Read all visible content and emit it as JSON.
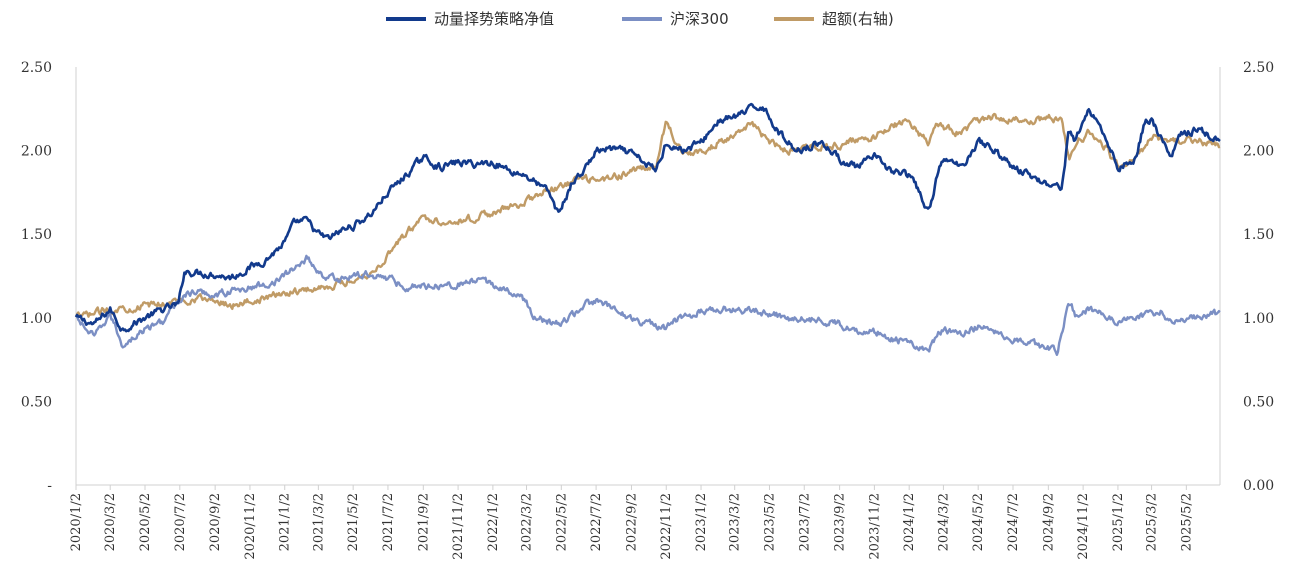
{
  "chart_data": {
    "type": "line",
    "legend": {
      "placement": "top-center",
      "entries": [
        {
          "name": "动量择势策略净值",
          "color": "#123a8c"
        },
        {
          "name": "沪深300",
          "color": "#7b8fc4"
        },
        {
          "name": "超额(右轴)",
          "color": "#c09b66"
        }
      ]
    },
    "y_left": {
      "ticks": [
        "-",
        "0.50",
        "1.00",
        "1.50",
        "2.00",
        "2.50"
      ],
      "tick_values": [
        0,
        0.5,
        1.0,
        1.5,
        2.0,
        2.5
      ],
      "range": [
        0,
        2.5
      ]
    },
    "y_right": {
      "ticks": [
        "0.00",
        "0.50",
        "1.00",
        "1.50",
        "2.00",
        "2.50"
      ],
      "tick_values": [
        0,
        0.5,
        1.0,
        1.5,
        2.0,
        2.5
      ],
      "range": [
        0,
        2.5
      ]
    },
    "x": {
      "start": "2020/1/2",
      "end": "2025/6/30",
      "ticks": [
        "2020/1/2",
        "2020/3/2",
        "2020/5/2",
        "2020/7/2",
        "2020/9/2",
        "2020/11/2",
        "2021/1/2",
        "2021/3/2",
        "2021/5/2",
        "2021/7/2",
        "2021/9/2",
        "2021/11/2",
        "2022/1/2",
        "2022/3/2",
        "2022/5/2",
        "2022/7/2",
        "2022/9/2",
        "2022/11/2",
        "2023/1/2",
        "2023/3/2",
        "2023/5/2",
        "2023/7/2",
        "2023/9/2",
        "2023/11/2",
        "2024/1/2",
        "2024/3/2",
        "2024/5/2",
        "2024/7/2",
        "2024/9/2",
        "2024/11/2",
        "2025/1/2",
        "2025/3/2",
        "2025/5/2"
      ]
    },
    "series": [
      {
        "name": "动量择势策略净值",
        "color": "#123a8c",
        "axis": "left",
        "points": [
          [
            "2020/1/2",
            1.0
          ],
          [
            "2020/2/3",
            0.96
          ],
          [
            "2020/3/2",
            1.05
          ],
          [
            "2020/3/23",
            0.93
          ],
          [
            "2020/5/2",
            1.0
          ],
          [
            "2020/6/2",
            1.05
          ],
          [
            "2020/6/30",
            1.08
          ],
          [
            "2020/7/10",
            1.28
          ],
          [
            "2020/8/2",
            1.27
          ],
          [
            "2020/9/2",
            1.26
          ],
          [
            "2020/9/30",
            1.24
          ],
          [
            "2020/11/2",
            1.3
          ],
          [
            "2020/12/1",
            1.35
          ],
          [
            "2021/1/2",
            1.45
          ],
          [
            "2021/1/20",
            1.57
          ],
          [
            "2021/2/10",
            1.58
          ],
          [
            "2021/3/2",
            1.5
          ],
          [
            "2021/3/20",
            1.47
          ],
          [
            "2021/4/10",
            1.52
          ],
          [
            "2021/5/2",
            1.55
          ],
          [
            "2021/6/2",
            1.62
          ],
          [
            "2021/7/2",
            1.75
          ],
          [
            "2021/8/2",
            1.85
          ],
          [
            "2021/9/2",
            1.96
          ],
          [
            "2021/10/2",
            1.9
          ],
          [
            "2021/11/2",
            1.93
          ],
          [
            "2021/12/2",
            1.92
          ],
          [
            "2022/1/2",
            1.93
          ],
          [
            "2022/2/2",
            1.88
          ],
          [
            "2022/3/2",
            1.85
          ],
          [
            "2022/4/10",
            1.75
          ],
          [
            "2022/4/27",
            1.62
          ],
          [
            "2022/5/20",
            1.8
          ],
          [
            "2022/6/15",
            1.9
          ],
          [
            "2022/7/2",
            2.0
          ],
          [
            "2022/8/2",
            2.01
          ],
          [
            "2022/9/2",
            1.98
          ],
          [
            "2022/10/15",
            1.88
          ],
          [
            "2022/11/2",
            2.05
          ],
          [
            "2022/12/2",
            2.0
          ],
          [
            "2023/1/2",
            2.05
          ],
          [
            "2023/2/2",
            2.18
          ],
          [
            "2023/3/2",
            2.2
          ],
          [
            "2023/4/2",
            2.25
          ],
          [
            "2023/4/20",
            2.27
          ],
          [
            "2023/5/20",
            2.1
          ],
          [
            "2023/6/20",
            2.0
          ],
          [
            "2023/7/2",
            2.02
          ],
          [
            "2023/8/2",
            2.05
          ],
          [
            "2023/9/2",
            1.95
          ],
          [
            "2023/10/2",
            1.9
          ],
          [
            "2023/11/2",
            1.96
          ],
          [
            "2023/12/2",
            1.88
          ],
          [
            "2024/1/2",
            1.85
          ],
          [
            "2024/1/20",
            1.75
          ],
          [
            "2024/2/5",
            1.62
          ],
          [
            "2024/2/20",
            1.85
          ],
          [
            "2024/3/2",
            1.95
          ],
          [
            "2024/4/2",
            1.9
          ],
          [
            "2024/5/2",
            2.06
          ],
          [
            "2024/6/2",
            2.0
          ],
          [
            "2024/7/2",
            1.9
          ],
          [
            "2024/8/2",
            1.85
          ],
          [
            "2024/9/2",
            1.8
          ],
          [
            "2024/9/25",
            1.78
          ],
          [
            "2024/10/8",
            2.12
          ],
          [
            "2024/10/20",
            2.05
          ],
          [
            "2024/11/10",
            2.25
          ],
          [
            "2024/12/2",
            2.15
          ],
          [
            "2025/1/2",
            1.9
          ],
          [
            "2025/2/2",
            1.95
          ],
          [
            "2025/2/20",
            2.2
          ],
          [
            "2025/3/2",
            2.18
          ],
          [
            "2025/4/7",
            1.95
          ],
          [
            "2025/4/20",
            2.1
          ],
          [
            "2025/5/2",
            2.1
          ],
          [
            "2025/5/20",
            2.13
          ],
          [
            "2025/6/30",
            2.05
          ]
        ]
      },
      {
        "name": "沪深300",
        "color": "#7b8fc4",
        "axis": "left",
        "points": [
          [
            "2020/1/2",
            1.0
          ],
          [
            "2020/2/3",
            0.88
          ],
          [
            "2020/3/2",
            1.02
          ],
          [
            "2020/3/23",
            0.84
          ],
          [
            "2020/5/2",
            0.93
          ],
          [
            "2020/6/2",
            0.98
          ],
          [
            "2020/7/10",
            1.14
          ],
          [
            "2020/8/2",
            1.15
          ],
          [
            "2020/9/2",
            1.14
          ],
          [
            "2020/11/2",
            1.18
          ],
          [
            "2020/12/2",
            1.2
          ],
          [
            "2021/1/2",
            1.25
          ],
          [
            "2021/2/10",
            1.36
          ],
          [
            "2021/3/10",
            1.25
          ],
          [
            "2021/4/2",
            1.23
          ],
          [
            "2021/5/2",
            1.25
          ],
          [
            "2021/6/2",
            1.26
          ],
          [
            "2021/7/2",
            1.24
          ],
          [
            "2021/7/28",
            1.19
          ],
          [
            "2021/9/2",
            1.19
          ],
          [
            "2021/10/2",
            1.2
          ],
          [
            "2021/11/2",
            1.2
          ],
          [
            "2021/12/2",
            1.22
          ],
          [
            "2022/1/2",
            1.2
          ],
          [
            "2022/2/2",
            1.15
          ],
          [
            "2022/3/2",
            1.1
          ],
          [
            "2022/3/15",
            1.0
          ],
          [
            "2022/4/27",
            0.96
          ],
          [
            "2022/5/15",
            1.0
          ],
          [
            "2022/6/15",
            1.08
          ],
          [
            "2022/7/2",
            1.1
          ],
          [
            "2022/8/2",
            1.05
          ],
          [
            "2022/9/2",
            1.0
          ],
          [
            "2022/10/31",
            0.93
          ],
          [
            "2022/11/15",
            0.98
          ],
          [
            "2022/12/2",
            1.0
          ],
          [
            "2023/1/2",
            1.04
          ],
          [
            "2023/2/2",
            1.06
          ],
          [
            "2023/3/2",
            1.05
          ],
          [
            "2023/4/2",
            1.04
          ],
          [
            "2023/5/2",
            1.03
          ],
          [
            "2023/6/2",
            1.0
          ],
          [
            "2023/7/2",
            1.0
          ],
          [
            "2023/8/2",
            0.98
          ],
          [
            "2023/9/2",
            0.96
          ],
          [
            "2023/10/2",
            0.93
          ],
          [
            "2023/11/2",
            0.92
          ],
          [
            "2023/12/2",
            0.88
          ],
          [
            "2024/1/2",
            0.85
          ],
          [
            "2024/2/5",
            0.8
          ],
          [
            "2024/2/20",
            0.9
          ],
          [
            "2024/3/2",
            0.92
          ],
          [
            "2024/4/2",
            0.91
          ],
          [
            "2024/5/2",
            0.95
          ],
          [
            "2024/6/2",
            0.92
          ],
          [
            "2024/7/2",
            0.88
          ],
          [
            "2024/8/2",
            0.85
          ],
          [
            "2024/9/18",
            0.8
          ],
          [
            "2024/10/8",
            1.1
          ],
          [
            "2024/10/20",
            1.02
          ],
          [
            "2024/11/10",
            1.05
          ],
          [
            "2024/12/2",
            1.03
          ],
          [
            "2025/1/2",
            0.98
          ],
          [
            "2025/2/2",
            1.0
          ],
          [
            "2025/3/2",
            1.03
          ],
          [
            "2025/3/20",
            1.04
          ],
          [
            "2025/4/7",
            0.95
          ],
          [
            "2025/4/20",
            1.0
          ],
          [
            "2025/5/2",
            1.0
          ],
          [
            "2025/6/2",
            1.02
          ],
          [
            "2025/6/30",
            1.02
          ]
        ]
      },
      {
        "name": "超额(右轴)",
        "color": "#c09b66",
        "axis": "right",
        "points": [
          [
            "2020/1/2",
            1.0
          ],
          [
            "2020/3/2",
            1.05
          ],
          [
            "2020/5/2",
            1.07
          ],
          [
            "2020/7/2",
            1.1
          ],
          [
            "2020/8/2",
            1.12
          ],
          [
            "2020/9/2",
            1.1
          ],
          [
            "2020/10/2",
            1.08
          ],
          [
            "2020/11/2",
            1.1
          ],
          [
            "2020/12/2",
            1.12
          ],
          [
            "2021/1/2",
            1.15
          ],
          [
            "2021/3/2",
            1.18
          ],
          [
            "2021/4/2",
            1.2
          ],
          [
            "2021/5/2",
            1.23
          ],
          [
            "2021/6/2",
            1.27
          ],
          [
            "2021/6/20",
            1.32
          ],
          [
            "2021/7/10",
            1.42
          ],
          [
            "2021/8/2",
            1.5
          ],
          [
            "2021/9/2",
            1.6
          ],
          [
            "2021/10/2",
            1.58
          ],
          [
            "2021/11/2",
            1.58
          ],
          [
            "2021/12/2",
            1.6
          ],
          [
            "2022/1/2",
            1.63
          ],
          [
            "2022/2/2",
            1.66
          ],
          [
            "2022/3/2",
            1.7
          ],
          [
            "2022/4/2",
            1.75
          ],
          [
            "2022/5/2",
            1.78
          ],
          [
            "2022/6/2",
            1.83
          ],
          [
            "2022/7/2",
            1.82
          ],
          [
            "2022/8/2",
            1.84
          ],
          [
            "2022/9/2",
            1.88
          ],
          [
            "2022/10/15",
            1.9
          ],
          [
            "2022/11/2",
            2.18
          ],
          [
            "2022/11/20",
            2.05
          ],
          [
            "2022/12/2",
            2.0
          ],
          [
            "2023/1/2",
            1.98
          ],
          [
            "2023/2/2",
            2.05
          ],
          [
            "2023/3/2",
            2.1
          ],
          [
            "2023/4/2",
            2.15
          ],
          [
            "2023/5/2",
            2.05
          ],
          [
            "2023/6/2",
            2.0
          ],
          [
            "2023/7/2",
            2.01
          ],
          [
            "2023/8/2",
            2.02
          ],
          [
            "2023/9/2",
            2.03
          ],
          [
            "2023/10/2",
            2.06
          ],
          [
            "2023/11/2",
            2.08
          ],
          [
            "2023/12/2",
            2.15
          ],
          [
            "2024/1/2",
            2.18
          ],
          [
            "2024/1/20",
            2.1
          ],
          [
            "2024/2/5",
            2.05
          ],
          [
            "2024/2/20",
            2.15
          ],
          [
            "2024/3/2",
            2.14
          ],
          [
            "2024/4/2",
            2.1
          ],
          [
            "2024/5/2",
            2.18
          ],
          [
            "2024/6/2",
            2.2
          ],
          [
            "2024/7/2",
            2.18
          ],
          [
            "2024/8/2",
            2.18
          ],
          [
            "2024/9/2",
            2.2
          ],
          [
            "2024/9/25",
            2.19
          ],
          [
            "2024/10/8",
            1.95
          ],
          [
            "2024/10/20",
            2.05
          ],
          [
            "2024/11/10",
            2.1
          ],
          [
            "2024/12/2",
            2.07
          ],
          [
            "2025/1/2",
            1.9
          ],
          [
            "2025/2/2",
            1.95
          ],
          [
            "2025/3/2",
            2.08
          ],
          [
            "2025/4/2",
            2.05
          ],
          [
            "2025/5/2",
            2.06
          ],
          [
            "2025/6/2",
            2.05
          ],
          [
            "2025/6/30",
            2.02
          ]
        ]
      }
    ]
  }
}
